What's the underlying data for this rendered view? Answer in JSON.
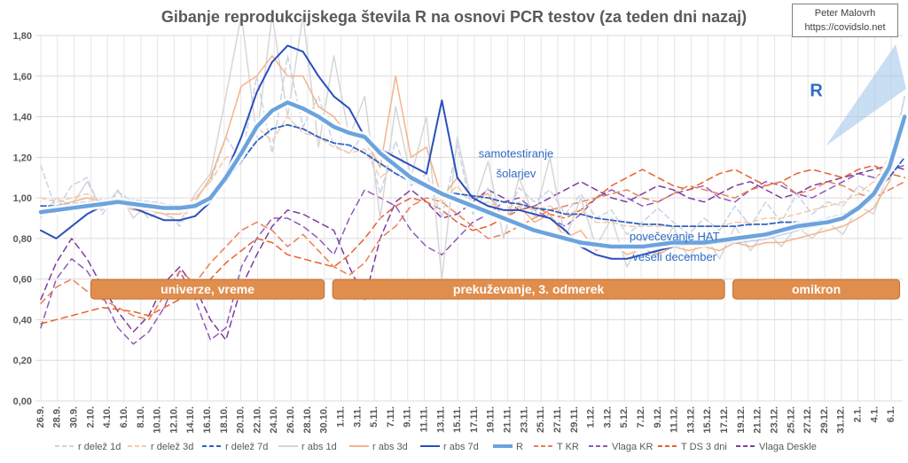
{
  "title": "Gibanje reprodukcijskega števila R na osnovi PCR testov (za teden dni nazaj)",
  "credit": {
    "name": "Peter Malovrh",
    "url": "https://covidslo.net"
  },
  "colors": {
    "r_delez_1d": "#c9d3e4",
    "r_delez_3d": "#f6c9a8",
    "r_delez_7d": "#2f63c4",
    "r_abs_1d": "#d6d6d6",
    "r_abs_3d": "#f3b48b",
    "r_abs_7d": "#2a4fbd",
    "R": "#6ba3dd",
    "T_KR": "#ea7f55",
    "Vlaga_KR": "#8e5ab8",
    "T_DS": "#e8612c",
    "Vlaga_Deskle": "#7d3c9e",
    "band": "#e08e4e"
  },
  "chart_data": {
    "type": "line",
    "ylim": [
      0,
      1.8
    ],
    "yticks": [
      "0,00",
      "0,20",
      "0,40",
      "0,60",
      "0,80",
      "1,00",
      "1,20",
      "1,40",
      "1,60",
      "1,80"
    ],
    "xticks": [
      "26.9.",
      "28.9.",
      "30.9.",
      "2.10.",
      "4.10.",
      "6.10.",
      "8.10.",
      "10.10.",
      "12.10.",
      "14.10.",
      "16.10.",
      "18.10.",
      "20.10.",
      "22.10.",
      "24.10.",
      "26.10.",
      "28.10.",
      "30.10.",
      "1.11.",
      "3.11.",
      "5.11.",
      "7.11.",
      "9.11.",
      "11.11.",
      "13.11.",
      "15.11.",
      "17.11.",
      "19.11.",
      "21.11.",
      "23.11.",
      "25.11.",
      "27.11.",
      "29.11.",
      "1.12.",
      "3.12.",
      "5.12.",
      "7.12.",
      "9.12.",
      "11.12.",
      "13.12.",
      "15.12.",
      "17.12.",
      "19.12.",
      "21.12.",
      "23.12.",
      "25.12.",
      "27.12.",
      "29.12.",
      "31.12.",
      "2.1.",
      "4.1.",
      "6.1."
    ],
    "grid": true,
    "legend": "bottom",
    "bands": [
      {
        "label": "univerze, vreme",
        "x_from": 3,
        "x_to": 17
      },
      {
        "label": "prekuževanje, 3. odmerek",
        "x_from": 17.5,
        "x_to": 41
      },
      {
        "label": "omikron",
        "x_from": 41.5,
        "x_to": 51.5
      }
    ],
    "annotations": [
      {
        "text": "samotestiranje",
        "x": 28.5,
        "y": 1.2
      },
      {
        "text": "šolarjev",
        "x": 28.5,
        "y": 1.1
      },
      {
        "text": "povečevanje HAT",
        "x": 38,
        "y": 0.79
      },
      {
        "text": "veseli december",
        "x": 38,
        "y": 0.69
      },
      {
        "text": "R",
        "x": 46.5,
        "y": 1.5
      }
    ],
    "series": [
      {
        "key": "r_delez_1d",
        "name": "r delež 1d",
        "dash": "6,4",
        "width": 1.5,
        "values": [
          1.16,
          0.94,
          1.06,
          1.1,
          0.92,
          1.03,
          0.98,
          0.9,
          0.95,
          0.86,
          1.0,
          1.08,
          1.3,
          1.18,
          1.6,
          1.22,
          1.7,
          1.35,
          1.5,
          1.26,
          1.22,
          1.32,
          1.02,
          1.28,
          1.06,
          1.12,
          0.9,
          1.26,
          0.92,
          1.05,
          0.88,
          1.05,
          0.98,
          1.04,
          0.92,
          1.02,
          0.9,
          0.94,
          0.82,
          0.88,
          0.95,
          0.88,
          0.82,
          0.9,
          0.84,
          0.96,
          0.86,
          0.98,
          0.88,
          1.02,
          0.92,
          0.98,
          0.96,
          1.06,
          1.02,
          1.16,
          1.5
        ]
      },
      {
        "key": "r_delez_3d",
        "name": "r delež 3d",
        "dash": "6,4",
        "width": 1.5,
        "values": [
          1.0,
          0.98,
          1.0,
          1.02,
          0.98,
          1.0,
          0.97,
          0.95,
          0.96,
          0.94,
          1.0,
          1.08,
          1.2,
          1.22,
          1.35,
          1.28,
          1.4,
          1.32,
          1.3,
          1.25,
          1.22,
          1.24,
          1.1,
          1.16,
          1.08,
          1.08,
          0.98,
          1.06,
          0.96,
          0.98,
          0.94,
          0.98,
          0.94,
          0.96,
          0.92,
          0.94,
          0.88,
          0.88,
          0.86,
          0.86,
          0.86,
          0.86,
          0.86,
          0.86,
          0.86,
          0.88,
          0.88,
          0.9,
          0.9,
          0.92,
          0.94,
          0.96,
          0.98,
          1.02,
          1.08,
          1.2,
          1.4
        ]
      },
      {
        "key": "r_delez_7d",
        "name": "r delež 7d",
        "dash": "6,3",
        "width": 1.8,
        "values": [
          0.96,
          0.96,
          0.97,
          0.98,
          0.99,
          0.99,
          0.99,
          0.98,
          0.97,
          0.96,
          0.97,
          1.0,
          1.08,
          1.18,
          1.28,
          1.34,
          1.36,
          1.34,
          1.3,
          1.27,
          1.26,
          1.22,
          1.17,
          1.12,
          1.08,
          1.05,
          1.03,
          1.02,
          1.01,
          1.0,
          0.98,
          0.97,
          0.95,
          0.94,
          0.92,
          0.92,
          0.9,
          0.89,
          0.88,
          0.87,
          0.87,
          0.86,
          0.86,
          0.86,
          0.86,
          0.86,
          0.87,
          0.87,
          0.88,
          0.88,
          0.88,
          0.9,
          0.92,
          0.96,
          1.02,
          1.1,
          1.2
        ]
      },
      {
        "key": "r_abs_1d",
        "name": "r abs 1d",
        "dash": "",
        "width": 1.5,
        "values": [
          0.9,
          1.0,
          0.96,
          1.08,
          0.94,
          1.04,
          0.9,
          0.98,
          0.92,
          0.88,
          1.02,
          1.12,
          1.5,
          1.9,
          1.3,
          1.9,
          1.4,
          1.9,
          1.25,
          1.7,
          1.3,
          1.5,
          0.9,
          1.45,
          1.1,
          1.4,
          0.6,
          1.3,
          0.95,
          1.18,
          0.8,
          1.1,
          0.9,
          1.2,
          0.8,
          1.0,
          0.76,
          0.9,
          0.66,
          0.8,
          0.72,
          0.86,
          0.7,
          0.82,
          0.7,
          0.86,
          0.74,
          0.84,
          0.76,
          0.86,
          0.8,
          0.88,
          0.82,
          0.96,
          0.92,
          1.14,
          1.5
        ]
      },
      {
        "key": "r_abs_3d",
        "name": "r abs 3d",
        "dash": "",
        "width": 1.5,
        "values": [
          0.92,
          0.96,
          0.98,
          1.0,
          0.98,
          0.98,
          0.94,
          0.94,
          0.92,
          0.92,
          0.98,
          1.1,
          1.3,
          1.55,
          1.6,
          1.7,
          1.6,
          1.6,
          1.45,
          1.4,
          1.3,
          1.3,
          1.15,
          1.6,
          1.2,
          1.25,
          1.0,
          1.1,
          1.0,
          1.02,
          0.9,
          0.96,
          0.88,
          0.92,
          0.8,
          0.84,
          0.74,
          0.78,
          0.72,
          0.75,
          0.72,
          0.76,
          0.74,
          0.76,
          0.74,
          0.78,
          0.76,
          0.78,
          0.78,
          0.8,
          0.82,
          0.84,
          0.86,
          0.9,
          0.95,
          1.08,
          1.4
        ]
      },
      {
        "key": "r_abs_7d",
        "name": "r abs 7d",
        "dash": "",
        "width": 2,
        "values": [
          0.84,
          0.8,
          0.86,
          0.92,
          0.96,
          0.98,
          0.95,
          0.92,
          0.89,
          0.89,
          0.91,
          0.98,
          1.12,
          1.3,
          1.52,
          1.67,
          1.75,
          1.72,
          1.6,
          1.5,
          1.44,
          1.3,
          1.24,
          1.2,
          1.16,
          1.12,
          1.48,
          1.1,
          1.0,
          0.96,
          0.94,
          0.94,
          0.92,
          0.9,
          0.84,
          0.76,
          0.72,
          0.7,
          0.7,
          0.72,
          0.74,
          0.76,
          0.77,
          0.77,
          0.78,
          0.78,
          0.79,
          0.8,
          0.82,
          0.84,
          0.86,
          0.88,
          0.9,
          0.94,
          1.0,
          1.12,
          1.38
        ]
      },
      {
        "key": "R",
        "name": "R",
        "dash": "",
        "width": 4.5,
        "values": [
          0.93,
          0.94,
          0.95,
          0.96,
          0.97,
          0.98,
          0.97,
          0.96,
          0.95,
          0.95,
          0.96,
          1.0,
          1.1,
          1.22,
          1.35,
          1.43,
          1.47,
          1.44,
          1.4,
          1.35,
          1.32,
          1.3,
          1.22,
          1.16,
          1.1,
          1.06,
          1.02,
          0.99,
          0.96,
          0.93,
          0.9,
          0.87,
          0.84,
          0.82,
          0.8,
          0.78,
          0.77,
          0.76,
          0.76,
          0.76,
          0.77,
          0.78,
          0.78,
          0.78,
          0.79,
          0.8,
          0.81,
          0.82,
          0.84,
          0.86,
          0.87,
          0.88,
          0.9,
          0.95,
          1.02,
          1.15,
          1.4
        ]
      },
      {
        "key": "T_KR",
        "name": "T KR",
        "dash": "7,5",
        "width": 1.5,
        "values": [
          0.48,
          0.56,
          0.6,
          0.54,
          0.5,
          0.46,
          0.42,
          0.4,
          0.52,
          0.64,
          0.58,
          0.68,
          0.76,
          0.84,
          0.88,
          0.84,
          0.76,
          0.82,
          0.74,
          0.66,
          0.62,
          0.68,
          0.8,
          0.86,
          0.96,
          1.0,
          0.98,
          0.92,
          0.86,
          0.8,
          0.82,
          0.86,
          0.9,
          0.94,
          0.96,
          0.98,
          1.0,
          1.02,
          1.04,
          1.0,
          0.98,
          1.02,
          1.06,
          1.04,
          1.02,
          1.0,
          1.04,
          1.06,
          1.08,
          1.02,
          1.04,
          1.08,
          1.06,
          1.02,
          1.0,
          1.04,
          1.08
        ]
      },
      {
        "key": "Vlaga_KR",
        "name": "Vlaga KR",
        "dash": "7,5",
        "width": 1.5,
        "values": [
          0.36,
          0.6,
          0.7,
          0.64,
          0.52,
          0.36,
          0.28,
          0.34,
          0.46,
          0.64,
          0.5,
          0.3,
          0.36,
          0.66,
          0.8,
          0.9,
          0.9,
          0.86,
          0.8,
          0.72,
          0.9,
          1.04,
          1.0,
          0.96,
          0.84,
          0.76,
          0.72,
          0.8,
          0.88,
          0.92,
          0.98,
          1.0,
          0.94,
          0.9,
          0.86,
          0.92,
          1.0,
          1.04,
          1.0,
          0.96,
          0.98,
          1.02,
          1.04,
          1.06,
          1.0,
          0.98,
          1.04,
          1.08,
          1.06,
          1.02,
          1.0,
          1.04,
          1.08,
          1.12,
          1.1,
          1.14,
          1.16
        ]
      },
      {
        "key": "T_DS",
        "name": "T DS 3 dni",
        "dash": "7,5",
        "width": 1.5,
        "values": [
          0.38,
          0.4,
          0.42,
          0.44,
          0.46,
          0.45,
          0.44,
          0.42,
          0.46,
          0.5,
          0.54,
          0.6,
          0.68,
          0.74,
          0.8,
          0.78,
          0.72,
          0.7,
          0.68,
          0.66,
          0.72,
          0.8,
          0.9,
          0.96,
          1.0,
          0.98,
          0.94,
          0.88,
          0.84,
          0.86,
          0.9,
          0.94,
          0.96,
          0.92,
          0.9,
          0.94,
          1.0,
          1.06,
          1.1,
          1.14,
          1.1,
          1.06,
          1.04,
          1.08,
          1.12,
          1.14,
          1.1,
          1.06,
          1.08,
          1.12,
          1.14,
          1.12,
          1.1,
          1.14,
          1.16,
          1.12,
          1.1
        ]
      },
      {
        "key": "Vlaga_Deskle",
        "name": "Vlaga Deskle",
        "dash": "7,5",
        "width": 1.5,
        "values": [
          0.5,
          0.68,
          0.8,
          0.7,
          0.56,
          0.44,
          0.34,
          0.42,
          0.58,
          0.66,
          0.56,
          0.4,
          0.3,
          0.56,
          0.72,
          0.86,
          0.94,
          0.92,
          0.88,
          0.84,
          0.66,
          0.5,
          0.8,
          0.98,
          1.04,
          0.98,
          0.9,
          0.92,
          0.98,
          1.04,
          1.0,
          0.94,
          0.96,
          1.0,
          1.04,
          1.08,
          1.04,
          1.0,
          0.98,
          1.02,
          1.06,
          1.04,
          1.0,
          0.98,
          1.02,
          1.06,
          1.08,
          1.04,
          1.0,
          1.02,
          1.06,
          1.08,
          1.1,
          1.12,
          1.14,
          1.16,
          1.14
        ]
      }
    ]
  }
}
